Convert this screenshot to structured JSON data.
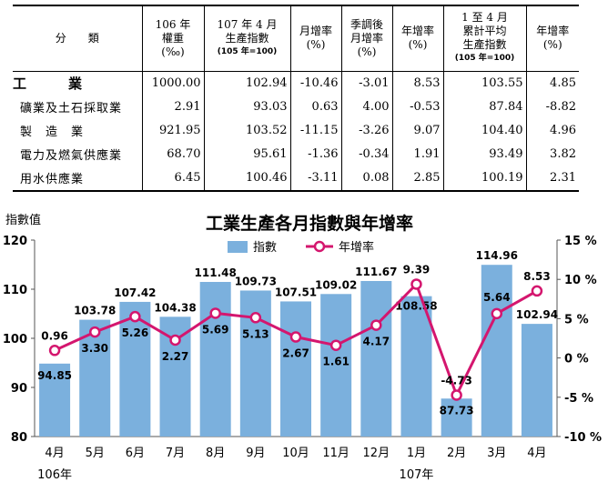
{
  "table": {
    "headers": {
      "category": "分　　類",
      "weight": [
        "106 年",
        "權重",
        "(‰)"
      ],
      "index": [
        "107 年 4 月",
        "生產指數"
      ],
      "index_base": "(105 年=100)",
      "mom": [
        "月增率",
        "(%)"
      ],
      "sa_mom": [
        "季調後",
        "月增率",
        "(%)"
      ],
      "yoy": [
        "年增率",
        "(%)"
      ],
      "cum_index": [
        "1 至 4 月",
        "累計平均",
        "生產指數"
      ],
      "cum_base": "(105 年=100)",
      "cum_yoy": [
        "年增率",
        "(%)"
      ]
    },
    "rows": [
      {
        "label": "工業",
        "weight": "1000.00",
        "index": "102.94",
        "mom": "-10.46",
        "sa_mom": "-3.01",
        "yoy": "8.53",
        "cum_index": "103.55",
        "cum_yoy": "4.85"
      },
      {
        "label": "礦業及土石採取業",
        "weight": "2.91",
        "index": "93.03",
        "mom": "0.63",
        "sa_mom": "4.00",
        "yoy": "-0.53",
        "cum_index": "87.84",
        "cum_yoy": "-8.82"
      },
      {
        "label": "製　造　業",
        "weight": "921.95",
        "index": "103.52",
        "mom": "-11.15",
        "sa_mom": "-3.26",
        "yoy": "9.07",
        "cum_index": "104.40",
        "cum_yoy": "4.96"
      },
      {
        "label": "電力及燃氣供應業",
        "weight": "68.70",
        "index": "95.61",
        "mom": "-1.36",
        "sa_mom": "-0.34",
        "yoy": "1.91",
        "cum_index": "93.49",
        "cum_yoy": "3.82"
      },
      {
        "label": "用水供應業",
        "weight": "6.45",
        "index": "100.46",
        "mom": "-3.11",
        "sa_mom": "0.08",
        "yoy": "2.85",
        "cum_index": "100.19",
        "cum_yoy": "2.31"
      }
    ]
  },
  "chart_data": {
    "type": "bar",
    "title": "工業生產各月指數與年增率",
    "ylabel": "指數值",
    "categories": [
      "4月",
      "5月",
      "6月",
      "7月",
      "8月",
      "9月",
      "10月",
      "11月",
      "12月",
      "1月",
      "2月",
      "3月",
      "4月"
    ],
    "year_labels": [
      {
        "text": "106年",
        "index": 0
      },
      {
        "text": "107年",
        "index": 9
      }
    ],
    "series": [
      {
        "name": "指數",
        "type": "bar",
        "axis": "left",
        "color": "#7BB0DD",
        "values": [
          94.85,
          103.78,
          107.42,
          104.38,
          111.48,
          109.73,
          107.51,
          109.02,
          111.67,
          108.58,
          87.73,
          114.96,
          102.94
        ]
      },
      {
        "name": "年增率",
        "type": "line",
        "axis": "right",
        "color": "#D4166E",
        "values": [
          0.96,
          3.3,
          5.26,
          2.27,
          5.69,
          5.13,
          2.67,
          1.61,
          4.17,
          9.39,
          -4.73,
          5.64,
          8.53
        ]
      }
    ],
    "left_axis": {
      "ylim": [
        80,
        120
      ],
      "ticks": [
        80,
        90,
        100,
        110,
        120
      ]
    },
    "right_axis": {
      "ylim": [
        -10,
        15
      ],
      "ticks": [
        -10,
        -5,
        0,
        5,
        10,
        15
      ],
      "tick_labels": [
        "-10 %",
        "-5 %",
        "0 %",
        "5 %",
        "10 %",
        "15 %"
      ]
    },
    "grid": false,
    "legend_position": "top-center"
  }
}
